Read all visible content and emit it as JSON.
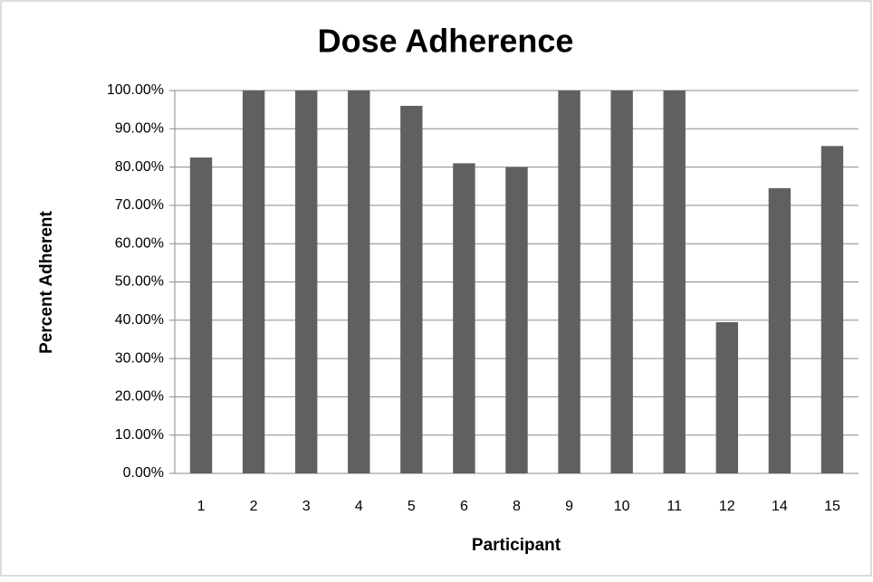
{
  "chart_data": {
    "type": "bar",
    "title": "Dose Adherence",
    "x_label": "Participant",
    "y_label": "Percent Adherent",
    "categories": [
      "1",
      "2",
      "3",
      "4",
      "5",
      "6",
      "8",
      "9",
      "10",
      "11",
      "12",
      "14",
      "15"
    ],
    "values": [
      82.5,
      100,
      100,
      100,
      96,
      81,
      80,
      100,
      100,
      100,
      39.5,
      74.5,
      85.5
    ],
    "color": "#606060",
    "ylim": [
      0,
      100
    ],
    "yticks": [
      {
        "value": 0,
        "label": "0.00%"
      },
      {
        "value": 10,
        "label": "10.00%"
      },
      {
        "value": 20,
        "label": "20.00%"
      },
      {
        "value": 30,
        "label": "30.00%"
      },
      {
        "value": 40,
        "label": "40.00%"
      },
      {
        "value": 50,
        "label": "50.00%"
      },
      {
        "value": 60,
        "label": "60.00%"
      },
      {
        "value": 70,
        "label": "70.00%"
      },
      {
        "value": 80,
        "label": "80.00%"
      },
      {
        "value": 90,
        "label": "90.00%"
      },
      {
        "value": 100,
        "label": "100.00%"
      }
    ],
    "grid": true
  }
}
